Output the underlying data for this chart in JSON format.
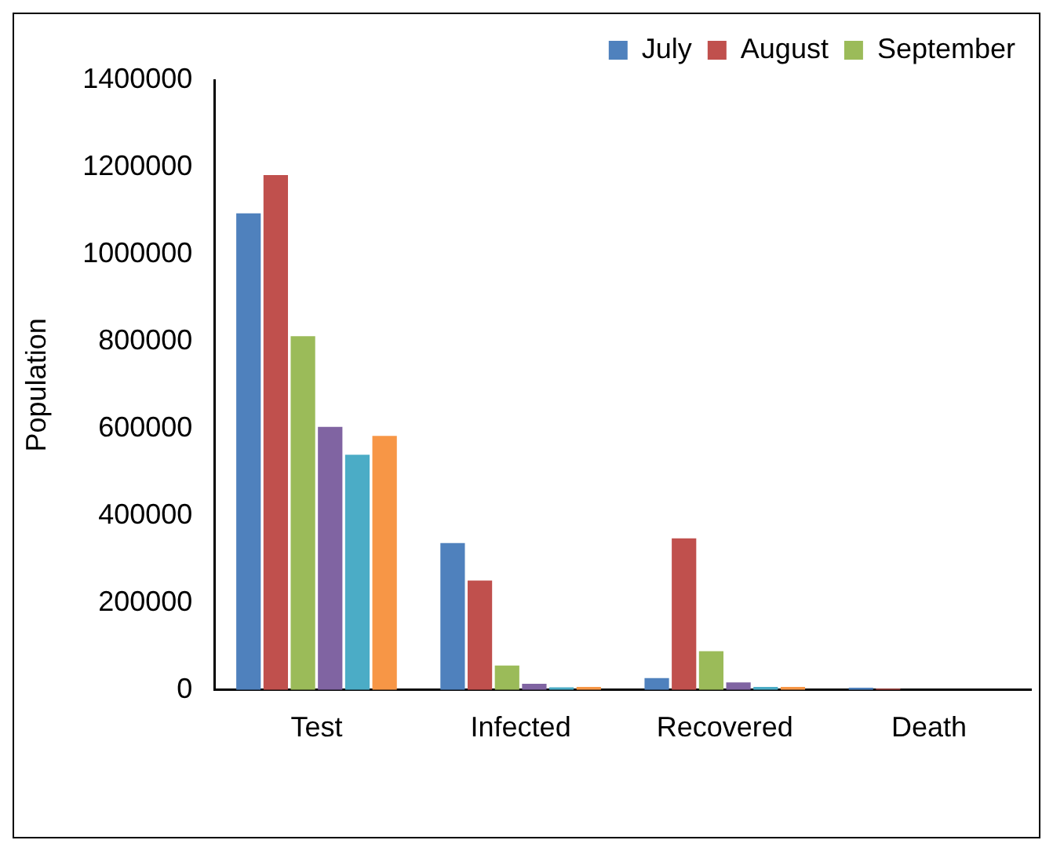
{
  "chart_data": {
    "type": "bar",
    "ylabel": "Population",
    "categories": [
      "Test",
      "Infected",
      "Recovered",
      "Death"
    ],
    "series": [
      {
        "name": "July",
        "color": "#4f81bd",
        "values": [
          1094000,
          337000,
          27000,
          5000
        ]
      },
      {
        "name": "August",
        "color": "#c0504d",
        "values": [
          1182000,
          251000,
          348000,
          3000
        ]
      },
      {
        "name": "September",
        "color": "#9bbb59",
        "values": [
          812000,
          56000,
          89000,
          0
        ]
      },
      {
        "color": "#8064a2",
        "values": [
          604000,
          14000,
          17000,
          0
        ]
      },
      {
        "color": "#4bacc6",
        "values": [
          540000,
          6000,
          7000,
          0
        ]
      },
      {
        "color": "#f79646",
        "values": [
          583000,
          7000,
          7000,
          0
        ]
      }
    ],
    "ylim": [
      0,
      1400000
    ],
    "yticks": [
      0,
      200000,
      400000,
      600000,
      800000,
      1000000,
      1200000,
      1400000
    ],
    "grid": false,
    "legend": "top right"
  }
}
